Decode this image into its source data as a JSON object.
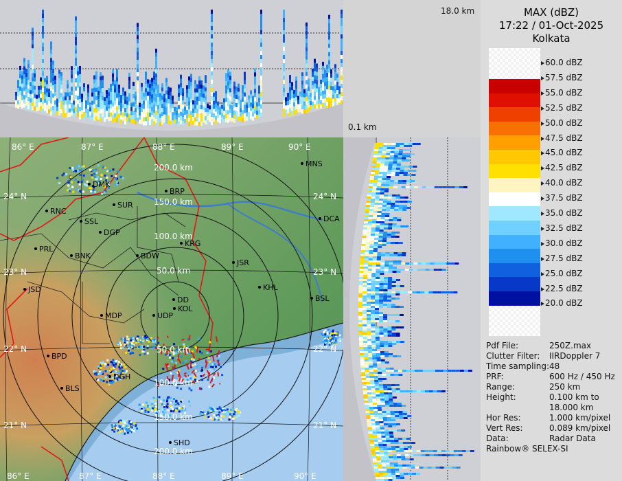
{
  "product": {
    "title": "MAX (dBZ)",
    "timestamp": "17:22 / 01-Oct-2025",
    "station": "Kolkata"
  },
  "height_labels": {
    "top": "18.0 km",
    "bottom": "0.1 km"
  },
  "legend": {
    "labels": [
      "60.0 dBZ",
      "57.5 dBZ",
      "55.0 dBZ",
      "52.5 dBZ",
      "50.0 dBZ",
      "47.5 dBZ",
      "45.0 dBZ",
      "42.5 dBZ",
      "40.0 dBZ",
      "37.5 dBZ",
      "35.0 dBZ",
      "32.5 dBZ",
      "30.0 dBZ",
      "27.5 dBZ",
      "25.0 dBZ",
      "22.5 dBZ",
      "20.0 dBZ"
    ],
    "colors": [
      "#a00000",
      "#c80000",
      "#e01000",
      "#f04000",
      "#f87000",
      "#ffa000",
      "#ffc800",
      "#ffe000",
      "#fff5c0",
      "#ffffff",
      "#a0e8ff",
      "#70d0ff",
      "#40b0ff",
      "#2090f0",
      "#1060e0",
      "#0838c8",
      "#0010a0"
    ]
  },
  "info": [
    {
      "key": "Pdf File:",
      "value": "250Z.max"
    },
    {
      "key": "Clutter Filter:",
      "value": "IIRDoppler 7"
    },
    {
      "key": "Time sampling:",
      "value": "48"
    },
    {
      "key": "PRF:",
      "value": "600 Hz / 450 Hz"
    },
    {
      "key": "Range:",
      "value": "250 km"
    },
    {
      "key": "Height:",
      "value": "0.100 km to"
    },
    {
      "key": "",
      "value": "18.000 km"
    },
    {
      "key": "Hor Res:",
      "value": "1.000 km/pixel"
    },
    {
      "key": "Vert Res:",
      "value": "0.089 km/pixel"
    },
    {
      "key": "Data:",
      "value": "Radar Data"
    }
  ],
  "footer": "Rainbow® SELEX-SI",
  "map": {
    "lon_labels": [
      "86° E",
      "87° E",
      "88° E",
      "89° E",
      "90° E"
    ],
    "lat_labels": [
      "24° N",
      "23° N",
      "22° N",
      "21° N"
    ],
    "range_labels": [
      "50.0 km",
      "100.0 km",
      "150.0 km",
      "200.0 km"
    ],
    "range_labels_south": [
      "50.0 km",
      "100.0 km",
      "150.0 km",
      "200.0 km"
    ],
    "stations": [
      "MNS",
      "BRP",
      "DMK",
      "SUR",
      "DCA",
      "RNC",
      "SSL",
      "DGP",
      "KRG",
      "PRL",
      "BNK",
      "BDW",
      "JSR",
      "KHL",
      "JSD",
      "DD",
      "BSL",
      "MDP",
      "UDP",
      "KOL",
      "BPD",
      "DGH",
      "BLS",
      "SHD"
    ]
  }
}
